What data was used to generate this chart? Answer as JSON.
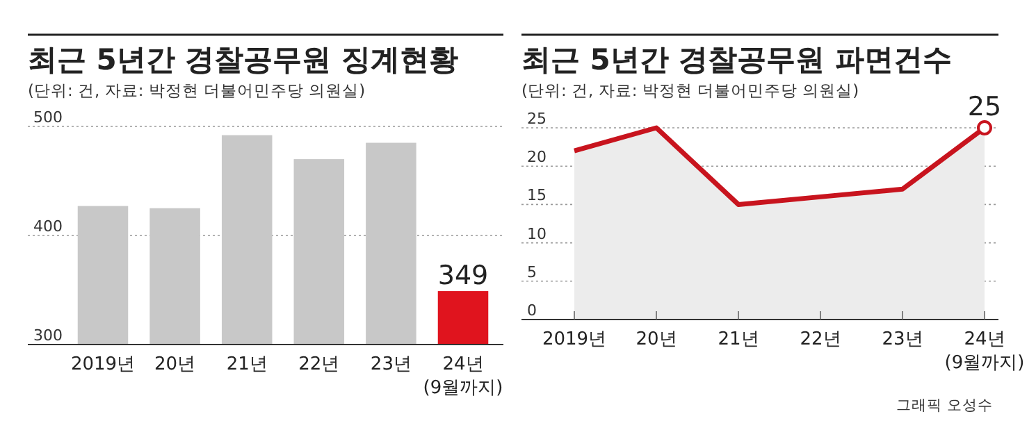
{
  "chart_data": [
    {
      "type": "bar",
      "title": "최근 5년간 경찰공무원 징계현황",
      "subtitle": "(단위: 건, 자료: 박정현 더불어민주당 의원실)",
      "categories": [
        "2019년",
        "20년",
        "21년",
        "22년",
        "23년",
        "24년\n(9월까지)"
      ],
      "values": [
        427,
        425,
        492,
        470,
        485,
        349
      ],
      "colors": [
        "#c8c8c8",
        "#c8c8c8",
        "#c8c8c8",
        "#c8c8c8",
        "#c8c8c8",
        "#e0141e"
      ],
      "value_labels": [
        null,
        null,
        null,
        null,
        null,
        "349"
      ],
      "ylim": [
        300,
        500
      ],
      "yticks": [
        300,
        400,
        500
      ],
      "grid": "y"
    },
    {
      "type": "area",
      "title": "최근 5년간 경찰공무원 파면건수",
      "subtitle": "(단위: 건, 자료: 박정현 더불어민주당 의원실)",
      "categories": [
        "2019년",
        "20년",
        "21년",
        "22년",
        "23년",
        "24년\n(9월까지)"
      ],
      "series": [
        {
          "color": "#c8141e",
          "values": [
            22,
            25,
            15,
            16,
            17,
            25
          ]
        },
        {
          "type": "scatter",
          "color": "#c8141e",
          "x": [
            "24년\n(9월까지)"
          ],
          "values": [
            25
          ]
        }
      ],
      "ylim": [
        0,
        25
      ],
      "yticks": [
        0,
        5,
        10,
        15,
        20,
        25
      ],
      "grid": "y",
      "annotations": [
        {
          "text": "25",
          "x": "24년\n(9월까지)",
          "y": 25
        },
        "그래픽 오성수"
      ]
    }
  ]
}
